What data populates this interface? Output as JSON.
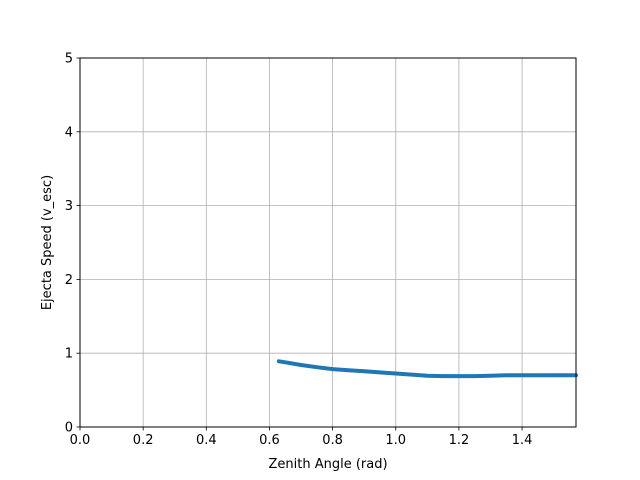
{
  "chart_data": {
    "type": "line",
    "title": "",
    "xlabel": "Zenith Angle (rad)",
    "ylabel": "Ejecta Speed (v_esc)",
    "xlim": [
      0,
      1.5708
    ],
    "ylim": [
      0,
      5
    ],
    "xticks": [
      0.0,
      0.2,
      0.4,
      0.6,
      0.8,
      1.0,
      1.2,
      1.4
    ],
    "xtick_labels": [
      "0.0",
      "0.2",
      "0.4",
      "0.6",
      "0.8",
      "1.0",
      "1.2",
      "1.4"
    ],
    "yticks": [
      0,
      1,
      2,
      3,
      4,
      5
    ],
    "ytick_labels": [
      "0",
      "1",
      "2",
      "3",
      "4",
      "5"
    ],
    "grid": true,
    "series": [
      {
        "color": "#1f77b4",
        "x": [
          0.63,
          0.66,
          0.7,
          0.75,
          0.8,
          0.85,
          0.9,
          0.95,
          1.0,
          1.05,
          1.1,
          1.15,
          1.2,
          1.25,
          1.3,
          1.35,
          1.4,
          1.45,
          1.5,
          1.5708
        ],
        "y": [
          0.89,
          0.87,
          0.84,
          0.81,
          0.785,
          0.77,
          0.755,
          0.74,
          0.725,
          0.71,
          0.695,
          0.69,
          0.69,
          0.69,
          0.695,
          0.7,
          0.7,
          0.7,
          0.7,
          0.7
        ]
      }
    ]
  }
}
